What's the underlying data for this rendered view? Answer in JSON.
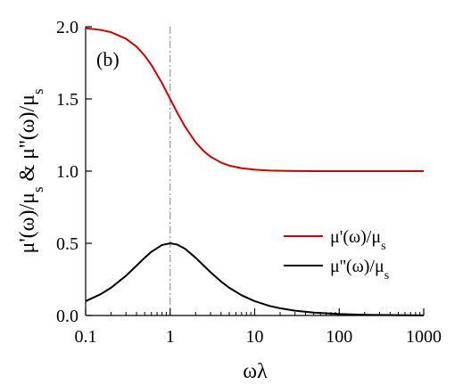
{
  "chart_data": {
    "type": "line",
    "panel_label": "(b)",
    "xlabel": "ωλ",
    "ylabel": {
      "parts": [
        {
          "t": "μ'(ω)/μ",
          "sub": false
        },
        {
          "t": "s",
          "sub": true
        },
        {
          "t": " & μ''(ω)/μ",
          "sub": false
        },
        {
          "t": "s",
          "sub": true
        }
      ]
    },
    "x_scale": "log",
    "xlim": [
      0.1,
      1000
    ],
    "ylim": [
      0,
      2.0
    ],
    "x_ticks": [
      {
        "value": 0.1,
        "label": "0.1"
      },
      {
        "value": 1,
        "label": "1"
      },
      {
        "value": 10,
        "label": "10"
      },
      {
        "value": 100,
        "label": "100"
      },
      {
        "value": 1000,
        "label": "1000"
      }
    ],
    "y_ticks": [
      {
        "value": 0.0,
        "label": "0.0"
      },
      {
        "value": 0.5,
        "label": "0.5"
      },
      {
        "value": 1.0,
        "label": "1.0"
      },
      {
        "value": 1.5,
        "label": "1.5"
      },
      {
        "value": 2.0,
        "label": "2.0"
      }
    ],
    "reference_line": {
      "x": 1,
      "style": "dash-dot",
      "color": "#999999"
    },
    "grid": false,
    "legend_position": "middle-right",
    "series": [
      {
        "name_parts": [
          {
            "t": "μ'(ω)/μ",
            "sub": false
          },
          {
            "t": "s",
            "sub": true
          }
        ],
        "color": "#d40000",
        "x": [
          0.1,
          0.15,
          0.2,
          0.3,
          0.4,
          0.5,
          0.6,
          0.8,
          1,
          1.2,
          1.5,
          2,
          2.5,
          3,
          4,
          5,
          7,
          10,
          15,
          20,
          30,
          50,
          100,
          200,
          500,
          1000
        ],
        "y": [
          1.99,
          1.978,
          1.962,
          1.917,
          1.862,
          1.8,
          1.735,
          1.61,
          1.5,
          1.41,
          1.308,
          1.2,
          1.138,
          1.1,
          1.059,
          1.038,
          1.02,
          1.01,
          1.004,
          1.002,
          1.001,
          1.0,
          1.0,
          1.0,
          1.0,
          1.0
        ]
      },
      {
        "name_parts": [
          {
            "t": "μ''(ω)/μ",
            "sub": false
          },
          {
            "t": "s",
            "sub": true
          }
        ],
        "color": "#000000",
        "x": [
          0.1,
          0.15,
          0.2,
          0.3,
          0.4,
          0.5,
          0.6,
          0.8,
          1,
          1.2,
          1.5,
          2,
          2.5,
          3,
          4,
          5,
          7,
          10,
          15,
          20,
          30,
          50,
          100,
          200,
          500,
          1000
        ],
        "y": [
          0.099,
          0.147,
          0.192,
          0.275,
          0.345,
          0.4,
          0.441,
          0.488,
          0.5,
          0.492,
          0.462,
          0.4,
          0.345,
          0.3,
          0.235,
          0.192,
          0.14,
          0.099,
          0.066,
          0.05,
          0.033,
          0.02,
          0.01,
          0.005,
          0.002,
          0.001
        ]
      }
    ]
  }
}
